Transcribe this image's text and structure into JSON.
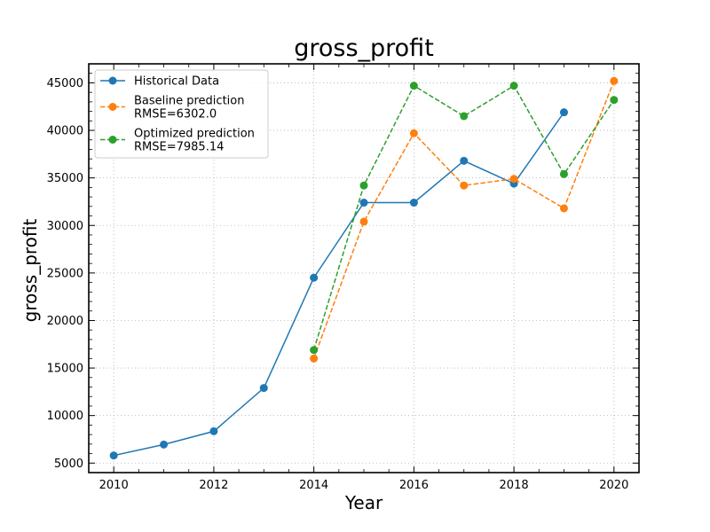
{
  "chart_data": {
    "type": "line",
    "title": "gross_profit",
    "xlabel": "Year",
    "ylabel": "gross_profit",
    "xlim": [
      2009.5,
      2020.5
    ],
    "ylim": [
      4000,
      47000
    ],
    "xticks": [
      2010,
      2012,
      2014,
      2016,
      2018,
      2020
    ],
    "yticks": [
      5000,
      10000,
      15000,
      20000,
      25000,
      30000,
      35000,
      40000,
      45000
    ],
    "grid": true,
    "legend_position": "top-left",
    "series": [
      {
        "name": "Historical Data",
        "legend_lines": [
          "Historical Data"
        ],
        "color": "#1f77b4",
        "linestyle": "solid",
        "x": [
          2010,
          2011,
          2012,
          2013,
          2014,
          2015,
          2016,
          2017,
          2018,
          2019
        ],
        "y": [
          5800,
          6950,
          8350,
          12900,
          24500,
          32400,
          32400,
          36800,
          34400,
          41900
        ]
      },
      {
        "name": "Baseline prediction RMSE=6302.0",
        "legend_lines": [
          "Baseline prediction",
          "RMSE=6302.0"
        ],
        "color": "#ff7f0e",
        "linestyle": "dashed",
        "x": [
          2014,
          2015,
          2016,
          2017,
          2018,
          2019,
          2020
        ],
        "y": [
          16000,
          30400,
          39700,
          34200,
          34900,
          31800,
          45200
        ]
      },
      {
        "name": "Optimized prediction RMSE=7985.14",
        "legend_lines": [
          "Optimized prediction",
          "RMSE=7985.14"
        ],
        "color": "#2ca02c",
        "linestyle": "dashed",
        "x": [
          2014,
          2015,
          2016,
          2017,
          2018,
          2019,
          2020
        ],
        "y": [
          16900,
          34200,
          44700,
          41500,
          44700,
          35400,
          43200
        ]
      }
    ]
  }
}
